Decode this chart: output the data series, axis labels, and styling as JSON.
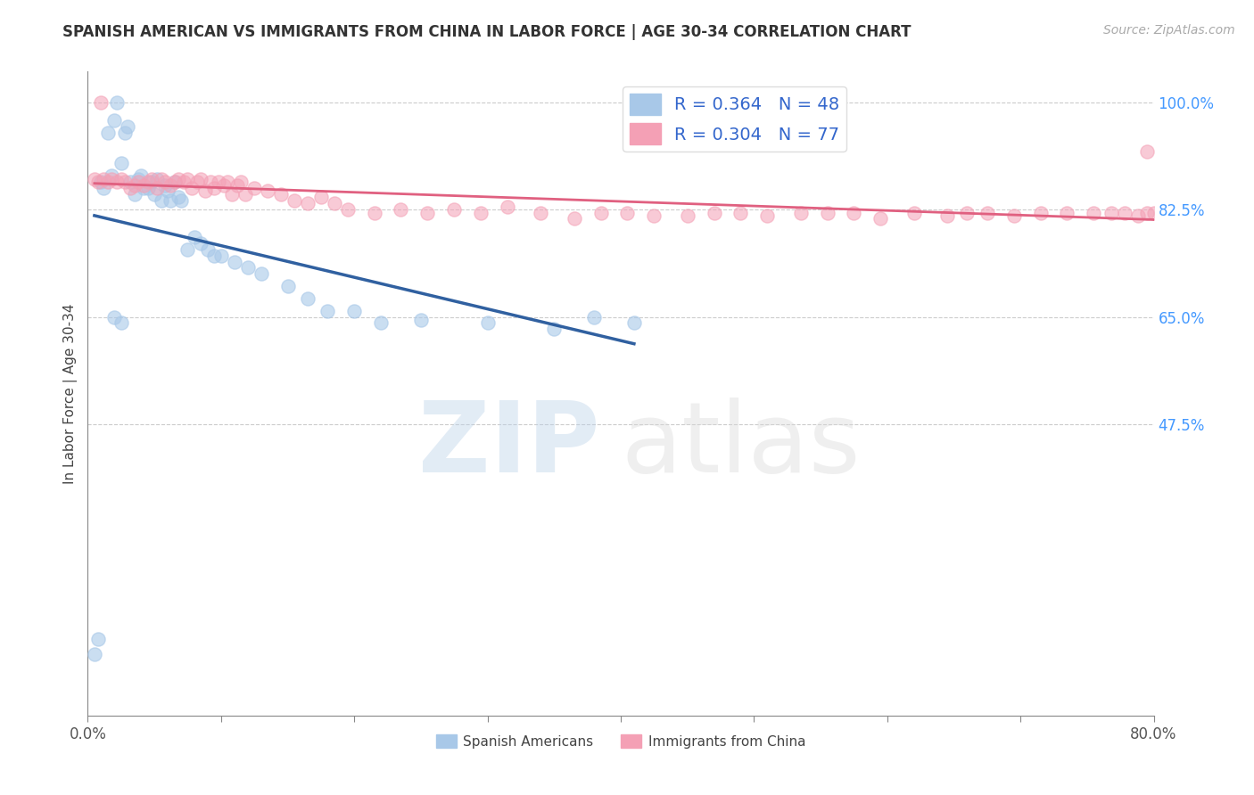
{
  "title": "SPANISH AMERICAN VS IMMIGRANTS FROM CHINA IN LABOR FORCE | AGE 30-34 CORRELATION CHART",
  "source": "Source: ZipAtlas.com",
  "ylabel": "In Labor Force | Age 30-34",
  "xlim": [
    0.0,
    0.8
  ],
  "ylim": [
    0.0,
    1.05
  ],
  "xticks": [
    0.0,
    0.1,
    0.2,
    0.3,
    0.4,
    0.5,
    0.6,
    0.7,
    0.8
  ],
  "yticks_right": [
    0.475,
    0.65,
    0.825,
    1.0
  ],
  "yticklabels_right": [
    "47.5%",
    "65.0%",
    "82.5%",
    "100.0%"
  ],
  "legend_blue_label": "R = 0.364   N = 48",
  "legend_pink_label": "R = 0.304   N = 77",
  "legend_label1": "Spanish Americans",
  "legend_label2": "Immigrants from China",
  "blue_color": "#a8c8e8",
  "pink_color": "#f4a0b5",
  "blue_line_color": "#3060a0",
  "pink_line_color": "#e06080",
  "grid_color": "#cccccc",
  "blue_x": [
    0.005,
    0.008,
    0.01,
    0.012,
    0.015,
    0.018,
    0.02,
    0.022,
    0.025,
    0.028,
    0.03,
    0.032,
    0.035,
    0.038,
    0.04,
    0.042,
    0.045,
    0.048,
    0.05,
    0.052,
    0.055,
    0.058,
    0.06,
    0.062,
    0.065,
    0.068,
    0.07,
    0.075,
    0.08,
    0.085,
    0.09,
    0.095,
    0.1,
    0.11,
    0.12,
    0.13,
    0.15,
    0.165,
    0.18,
    0.2,
    0.22,
    0.25,
    0.3,
    0.35,
    0.38,
    0.41,
    0.02,
    0.025
  ],
  "blue_y": [
    0.1,
    0.125,
    0.87,
    0.86,
    0.95,
    0.88,
    0.97,
    1.0,
    0.9,
    0.95,
    0.96,
    0.87,
    0.85,
    0.875,
    0.88,
    0.86,
    0.86,
    0.87,
    0.85,
    0.875,
    0.84,
    0.865,
    0.855,
    0.84,
    0.87,
    0.845,
    0.84,
    0.76,
    0.78,
    0.77,
    0.76,
    0.75,
    0.75,
    0.74,
    0.73,
    0.72,
    0.7,
    0.68,
    0.66,
    0.66,
    0.64,
    0.645,
    0.64,
    0.63,
    0.65,
    0.64,
    0.65,
    0.64
  ],
  "pink_x": [
    0.005,
    0.008,
    0.012,
    0.015,
    0.018,
    0.022,
    0.025,
    0.028,
    0.032,
    0.035,
    0.038,
    0.042,
    0.045,
    0.048,
    0.052,
    0.055,
    0.058,
    0.062,
    0.065,
    0.068,
    0.072,
    0.075,
    0.078,
    0.082,
    0.085,
    0.088,
    0.092,
    0.095,
    0.098,
    0.102,
    0.105,
    0.108,
    0.112,
    0.115,
    0.118,
    0.125,
    0.135,
    0.145,
    0.155,
    0.165,
    0.175,
    0.185,
    0.195,
    0.215,
    0.235,
    0.255,
    0.275,
    0.295,
    0.315,
    0.34,
    0.365,
    0.385,
    0.405,
    0.425,
    0.45,
    0.47,
    0.49,
    0.51,
    0.535,
    0.555,
    0.575,
    0.595,
    0.62,
    0.645,
    0.66,
    0.675,
    0.695,
    0.715,
    0.735,
    0.755,
    0.768,
    0.778,
    0.788,
    0.795,
    0.8,
    0.01,
    0.795
  ],
  "pink_y": [
    0.875,
    0.87,
    0.875,
    0.87,
    0.875,
    0.87,
    0.875,
    0.87,
    0.86,
    0.865,
    0.87,
    0.865,
    0.87,
    0.875,
    0.86,
    0.875,
    0.87,
    0.865,
    0.87,
    0.875,
    0.87,
    0.875,
    0.86,
    0.87,
    0.875,
    0.855,
    0.87,
    0.86,
    0.87,
    0.865,
    0.87,
    0.85,
    0.865,
    0.87,
    0.85,
    0.86,
    0.855,
    0.85,
    0.84,
    0.835,
    0.845,
    0.835,
    0.825,
    0.82,
    0.825,
    0.82,
    0.825,
    0.82,
    0.83,
    0.82,
    0.81,
    0.82,
    0.82,
    0.815,
    0.815,
    0.82,
    0.82,
    0.815,
    0.82,
    0.82,
    0.82,
    0.81,
    0.82,
    0.815,
    0.82,
    0.82,
    0.815,
    0.82,
    0.82,
    0.82,
    0.82,
    0.82,
    0.815,
    0.82,
    0.82,
    1.0,
    0.92
  ]
}
